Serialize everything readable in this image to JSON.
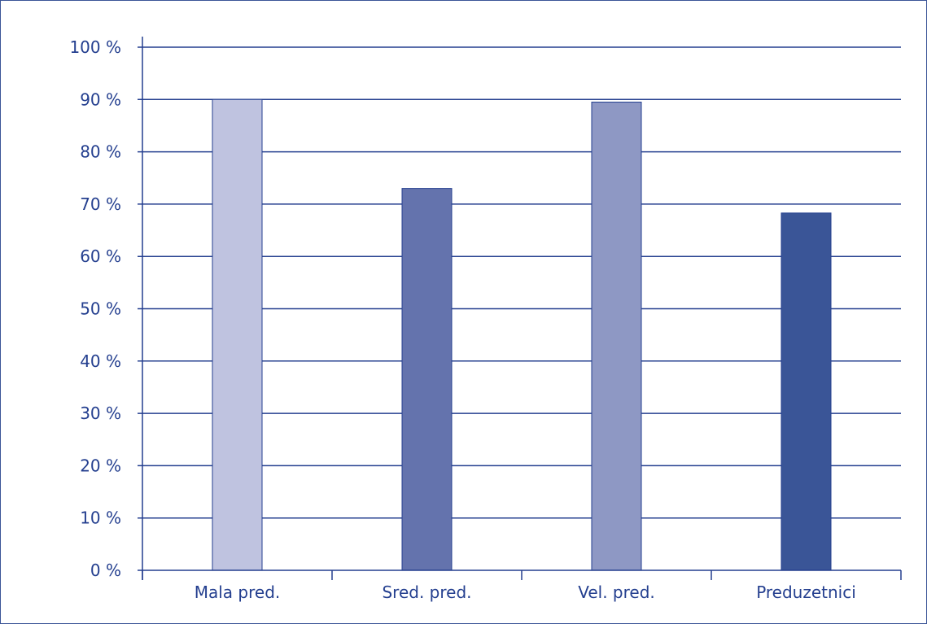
{
  "chart_data": {
    "type": "bar",
    "categories": [
      "Mala pred.",
      "Sred. pred.",
      "Vel. pred.",
      "Preduzetnici"
    ],
    "values": [
      90,
      73,
      89.5,
      68.3
    ],
    "bar_colors": [
      "#bfc3e0",
      "#6473ad",
      "#8e98c4",
      "#3a5597"
    ],
    "yticks": [
      "0 %",
      "10 %",
      "20 %",
      "30 %",
      "40 %",
      "50 %",
      "60 %",
      "70 %",
      "80 %",
      "90 %",
      "100 %"
    ],
    "ylim": [
      0,
      100
    ],
    "grid": true,
    "title": "",
    "xlabel": "",
    "ylabel": ""
  },
  "colors": {
    "axis": "#243f8f",
    "gridline": "#243f8f",
    "text": "#243f8f",
    "frame": "#3a5597",
    "bar_border": "#243f8f"
  }
}
